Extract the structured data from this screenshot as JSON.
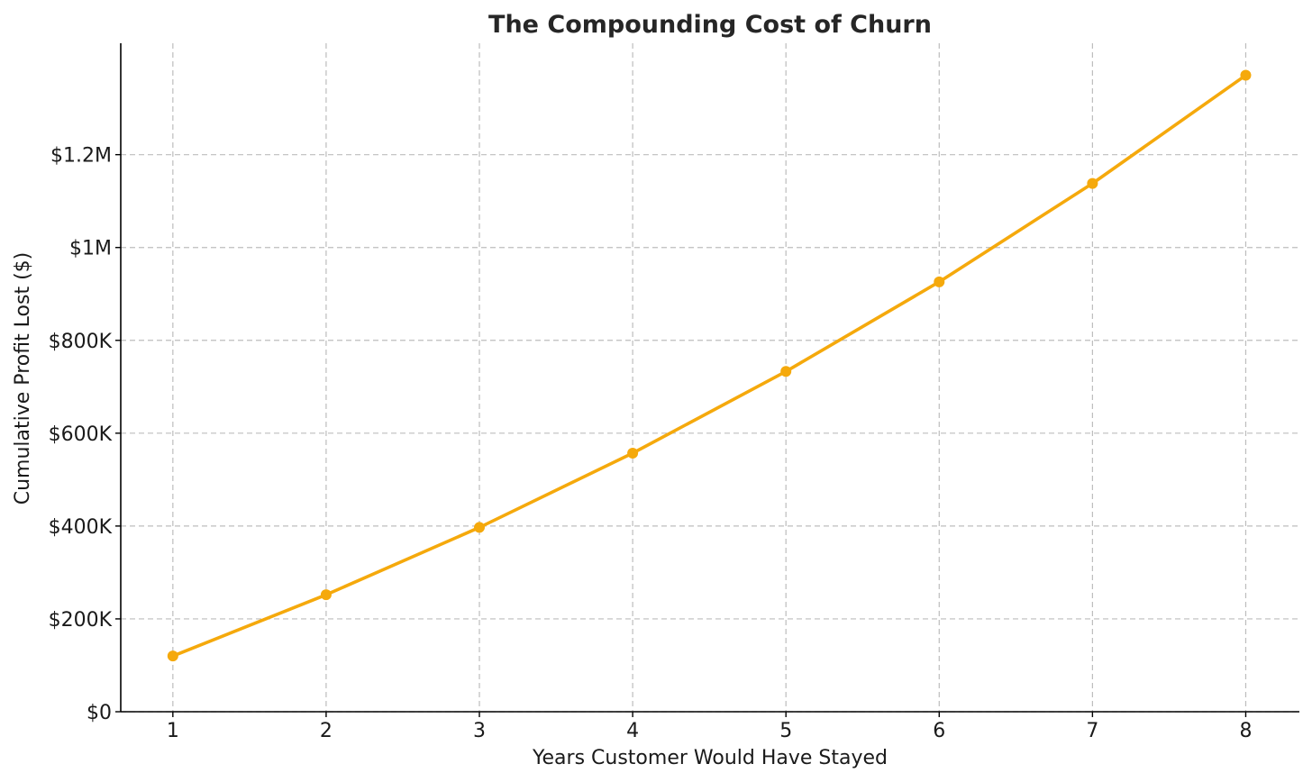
{
  "chart_data": {
    "type": "line",
    "title": "The Compounding Cost of Churn",
    "xlabel": "Years Customer Would Have Stayed",
    "ylabel": "Cumulative Profit Lost ($)",
    "x": [
      1,
      2,
      3,
      4,
      5,
      6,
      7,
      8
    ],
    "series": [
      {
        "values": [
          120000,
          252000,
          397000,
          557000,
          733000,
          926000,
          1138000,
          1371000
        ]
      }
    ],
    "xlim": [
      0.66,
      8.35
    ],
    "ylim": [
      0,
      1440000
    ],
    "x_ticks": [
      {
        "value": 1,
        "label": "1"
      },
      {
        "value": 2,
        "label": "2"
      },
      {
        "value": 3,
        "label": "3"
      },
      {
        "value": 4,
        "label": "4"
      },
      {
        "value": 5,
        "label": "5"
      },
      {
        "value": 6,
        "label": "6"
      },
      {
        "value": 7,
        "label": "7"
      },
      {
        "value": 8,
        "label": "8"
      }
    ],
    "y_ticks": [
      {
        "value": 0,
        "label": "$0"
      },
      {
        "value": 200000,
        "label": "$200K"
      },
      {
        "value": 400000,
        "label": "$400K"
      },
      {
        "value": 600000,
        "label": "$600K"
      },
      {
        "value": 800000,
        "label": "$800K"
      },
      {
        "value": 1000000,
        "label": "$1M"
      },
      {
        "value": 1200000,
        "label": "$1.2M"
      }
    ],
    "grid": true,
    "line_color": "#f5a90c",
    "marker": "circle"
  }
}
